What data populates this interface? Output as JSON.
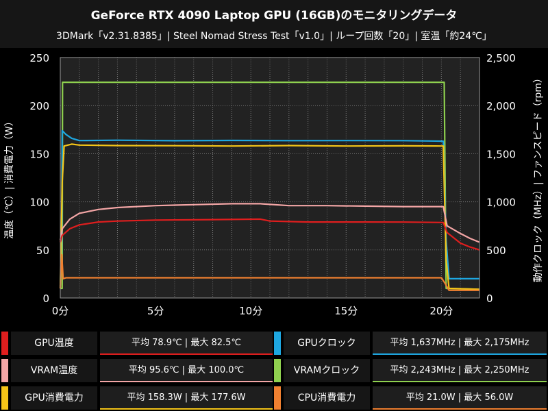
{
  "chart_data": {
    "type": "line",
    "title": "GeForce RTX 4090 Laptop GPU (16GB)のモニタリングデータ",
    "subtitle": "3DMark「v2.31.8385」| Steel Nomad Stress Test「v1.0」| ループ回数「20」| 室温「約24℃」",
    "ylabel_left": "温度（℃）| 消費電力（W）",
    "ylabel_right": "動作クロック（MHz）| ファンスピード（rpm）",
    "xlim": [
      0,
      22
    ],
    "ylim_left": [
      0,
      250
    ],
    "ylim_right": [
      0,
      2500
    ],
    "x_ticks": [
      0,
      5,
      10,
      15,
      20
    ],
    "x_tick_labels": [
      "0分",
      "5分",
      "10分",
      "15分",
      "20分"
    ],
    "y_left_ticks": [
      0,
      50,
      100,
      150,
      200,
      250
    ],
    "y_left_tick_labels": [
      "0",
      "50",
      "100",
      "150",
      "200",
      "250"
    ],
    "y_right_ticks": [
      0,
      500,
      1000,
      1500,
      2000,
      2500
    ],
    "y_right_tick_labels": [
      "0",
      "500",
      "1,000",
      "1,500",
      "2,000",
      "2,500"
    ],
    "grid": true,
    "series": [
      {
        "name": "VRAMクロック",
        "axis": "right",
        "color": "#8fd14f",
        "x": [
          0,
          0.1,
          0.12,
          20.15,
          20.25,
          22
        ],
        "y": [
          100,
          100,
          2243,
          2243,
          100,
          90
        ]
      },
      {
        "name": "GPUクロック",
        "axis": "right",
        "color": "#1ea7e1",
        "x": [
          0,
          0.08,
          0.1,
          0.3,
          0.6,
          1,
          3,
          6,
          9,
          12,
          15,
          18,
          20.1,
          20.25,
          20.4,
          22
        ],
        "y": [
          120,
          600,
          1740,
          1700,
          1660,
          1637,
          1640,
          1635,
          1638,
          1636,
          1637,
          1636,
          1630,
          600,
          200,
          200
        ]
      },
      {
        "name": "GPU消費電力",
        "axis": "left",
        "color": "#f5c518",
        "x": [
          0,
          0.1,
          0.2,
          0.6,
          1,
          3,
          6,
          9,
          12,
          15,
          18,
          20.1,
          20.25,
          20.4,
          22
        ],
        "y": [
          10,
          120,
          158,
          160,
          159,
          158.5,
          158.3,
          158,
          158.5,
          158,
          158.2,
          158,
          40,
          10,
          9
        ]
      },
      {
        "name": "VRAM温度",
        "axis": "left",
        "color": "#f4a6a6",
        "x": [
          0,
          0.1,
          0.5,
          1,
          2,
          3,
          5,
          7,
          9,
          10.5,
          12,
          14,
          16,
          18,
          20.1,
          20.3,
          21,
          21.5,
          22
        ],
        "y": [
          60,
          72,
          82,
          88,
          92,
          94,
          96,
          97,
          98,
          98,
          96,
          96,
          95.5,
          95,
          95,
          75,
          67,
          62,
          58
        ]
      },
      {
        "name": "GPU温度",
        "axis": "left",
        "color": "#e01e1e",
        "x": [
          0,
          0.1,
          0.5,
          1,
          2,
          3,
          5,
          8,
          10.5,
          11,
          13,
          16,
          18,
          20.1,
          20.3,
          21,
          21.5,
          22
        ],
        "y": [
          58,
          65,
          72,
          76,
          79,
          80,
          81,
          81.5,
          82,
          80,
          79,
          79,
          78.9,
          78.5,
          68,
          57,
          53,
          50
        ]
      },
      {
        "name": "CPU消費電力",
        "axis": "left",
        "color": "#f08030",
        "x": [
          0,
          0.08,
          0.15,
          0.3,
          5,
          10,
          11.5,
          15,
          20,
          20.2,
          20.4,
          22
        ],
        "y": [
          10,
          45,
          20,
          21,
          21,
          21,
          21,
          21,
          21,
          15,
          8,
          8
        ]
      }
    ]
  },
  "legend": [
    {
      "name": "GPU温度",
      "color": "#e01e1e",
      "value": "平均 78.9℃ | 最大 82.5℃"
    },
    {
      "name": "GPUクロック",
      "color": "#1ea7e1",
      "value": "平均 1,637MHz | 最大 2,175MHz"
    },
    {
      "name": "VRAM温度",
      "color": "#f4a6a6",
      "value": "平均 95.6℃ | 最大 100.0℃"
    },
    {
      "name": "VRAMクロック",
      "color": "#8fd14f",
      "value": "平均 2,243MHz | 最大 2,250MHz"
    },
    {
      "name": "GPU消費電力",
      "color": "#f5c518",
      "value": "平均 158.3W | 最大 177.6W"
    },
    {
      "name": "CPU消費電力",
      "color": "#f08030",
      "value": "平均 21.0W | 最大 56.0W"
    }
  ]
}
